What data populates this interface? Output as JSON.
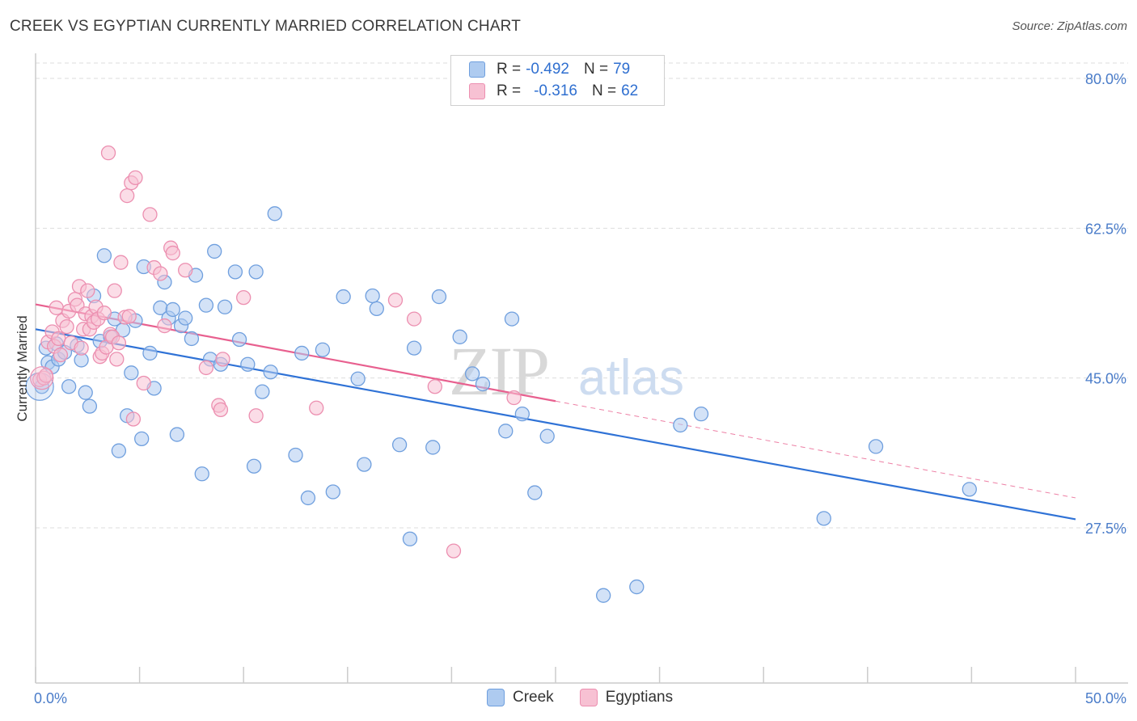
{
  "header": {
    "title": "CREEK VS EGYPTIAN CURRENTLY MARRIED CORRELATION CHART",
    "source": "Source: ZipAtlas.com"
  },
  "legend": {
    "rows": [
      {
        "r_label": "R =",
        "r_value": "-0.492",
        "n_label": "N =",
        "n_value": "79"
      },
      {
        "r_label": "R =",
        "r_value": "-0.316",
        "n_label": "N =",
        "n_value": "62"
      }
    ]
  },
  "bottom_legend": {
    "items": [
      {
        "label": "Creek"
      },
      {
        "label": "Egyptians"
      }
    ]
  },
  "watermark": {
    "zip": "ZIP",
    "atlas": "atlas"
  },
  "colors": {
    "creek_fill": "#aecbf0",
    "creek_stroke": "#6f9fde",
    "creek_line": "#2f72d6",
    "egypt_fill": "#f7c1d3",
    "egypt_stroke": "#ec8fb0",
    "egypt_line": "#e8608f",
    "grid": "#dddddd",
    "tick_text": "#4a7cc9"
  },
  "chart_data": {
    "type": "scatter",
    "title": "CREEK VS EGYPTIAN CURRENTLY MARRIED CORRELATION CHART",
    "xlabel": "",
    "ylabel": "Currently Married",
    "xlim": [
      0,
      50
    ],
    "ylim": [
      10,
      85
    ],
    "x_tick_labels": [
      "0.0%",
      "50.0%"
    ],
    "y_ticks": [
      27.5,
      45.0,
      62.5,
      80.0
    ],
    "y_tick_labels": [
      "27.5%",
      "45.0%",
      "62.5%",
      "80.0%"
    ],
    "grid": true,
    "legend_position": "top-center",
    "series": [
      {
        "name": "Creek",
        "r": -0.492,
        "n": 79,
        "trend": {
          "x0": 0,
          "y0": 50.7,
          "x1": 50,
          "y1": 28.5
        },
        "points": [
          [
            0.3,
            44.0
          ],
          [
            0.5,
            48.5
          ],
          [
            0.6,
            46.8
          ],
          [
            0.8,
            46.3
          ],
          [
            1.0,
            49.0
          ],
          [
            1.1,
            47.2
          ],
          [
            1.4,
            48.0
          ],
          [
            1.6,
            44.0
          ],
          [
            2.0,
            48.8
          ],
          [
            2.2,
            47.1
          ],
          [
            2.4,
            43.3
          ],
          [
            2.6,
            41.7
          ],
          [
            2.8,
            54.6
          ],
          [
            3.1,
            49.3
          ],
          [
            3.3,
            59.3
          ],
          [
            3.6,
            49.8
          ],
          [
            3.8,
            51.9
          ],
          [
            4.0,
            36.5
          ],
          [
            4.2,
            50.6
          ],
          [
            4.4,
            40.6
          ],
          [
            4.6,
            45.6
          ],
          [
            4.8,
            51.7
          ],
          [
            5.1,
            37.9
          ],
          [
            5.2,
            58.0
          ],
          [
            5.5,
            47.9
          ],
          [
            5.7,
            43.8
          ],
          [
            6.0,
            53.2
          ],
          [
            6.2,
            56.2
          ],
          [
            6.4,
            52.0
          ],
          [
            6.6,
            53.0
          ],
          [
            6.8,
            38.4
          ],
          [
            7.0,
            51.1
          ],
          [
            7.2,
            52.0
          ],
          [
            7.5,
            49.6
          ],
          [
            7.7,
            57.0
          ],
          [
            8.0,
            33.8
          ],
          [
            8.2,
            53.5
          ],
          [
            8.4,
            47.2
          ],
          [
            8.6,
            59.8
          ],
          [
            8.9,
            46.6
          ],
          [
            9.1,
            53.3
          ],
          [
            9.6,
            57.4
          ],
          [
            9.8,
            49.5
          ],
          [
            10.2,
            46.6
          ],
          [
            10.5,
            34.7
          ],
          [
            10.6,
            57.4
          ],
          [
            10.9,
            43.4
          ],
          [
            11.3,
            45.7
          ],
          [
            11.5,
            64.2
          ],
          [
            12.5,
            36.0
          ],
          [
            12.8,
            47.9
          ],
          [
            13.1,
            31.0
          ],
          [
            13.8,
            48.3
          ],
          [
            14.3,
            31.7
          ],
          [
            14.8,
            54.5
          ],
          [
            15.5,
            44.9
          ],
          [
            15.8,
            34.9
          ],
          [
            16.2,
            54.6
          ],
          [
            16.4,
            53.1
          ],
          [
            17.5,
            37.2
          ],
          [
            18.0,
            26.2
          ],
          [
            18.2,
            48.5
          ],
          [
            19.1,
            36.9
          ],
          [
            19.4,
            54.5
          ],
          [
            20.4,
            49.8
          ],
          [
            21.0,
            45.5
          ],
          [
            21.5,
            44.3
          ],
          [
            22.6,
            38.8
          ],
          [
            22.9,
            51.9
          ],
          [
            23.4,
            40.8
          ],
          [
            24.0,
            31.6
          ],
          [
            24.6,
            38.2
          ],
          [
            27.3,
            19.6
          ],
          [
            28.9,
            20.6
          ],
          [
            31.0,
            39.5
          ],
          [
            32.0,
            40.8
          ],
          [
            37.9,
            28.6
          ],
          [
            40.4,
            37.0
          ],
          [
            44.9,
            32.0
          ]
        ]
      },
      {
        "name": "Egyptians",
        "r": -0.316,
        "n": 62,
        "trend": {
          "x0": 0,
          "y0": 53.6,
          "x1": 50,
          "y1": 31.0
        },
        "trend_solid_until": 25,
        "points": [
          [
            0.2,
            44.8
          ],
          [
            0.4,
            45.0
          ],
          [
            0.6,
            49.2
          ],
          [
            0.8,
            50.4
          ],
          [
            0.9,
            48.7
          ],
          [
            1.0,
            53.2
          ],
          [
            1.1,
            49.6
          ],
          [
            1.2,
            47.7
          ],
          [
            1.3,
            51.7
          ],
          [
            1.5,
            51.0
          ],
          [
            1.6,
            52.8
          ],
          [
            1.7,
            49.1
          ],
          [
            1.9,
            54.2
          ],
          [
            2.0,
            53.5
          ],
          [
            2.1,
            55.7
          ],
          [
            2.2,
            48.5
          ],
          [
            2.3,
            50.7
          ],
          [
            2.4,
            52.5
          ],
          [
            2.5,
            55.2
          ],
          [
            2.6,
            50.7
          ],
          [
            2.7,
            52.2
          ],
          [
            2.8,
            51.5
          ],
          [
            2.9,
            53.3
          ],
          [
            3.0,
            51.9
          ],
          [
            3.1,
            47.5
          ],
          [
            3.2,
            47.9
          ],
          [
            3.3,
            52.6
          ],
          [
            3.4,
            48.6
          ],
          [
            3.5,
            71.3
          ],
          [
            3.6,
            50.1
          ],
          [
            3.7,
            49.8
          ],
          [
            3.8,
            55.2
          ],
          [
            3.9,
            47.2
          ],
          [
            4.0,
            49.1
          ],
          [
            4.1,
            58.5
          ],
          [
            4.3,
            52.1
          ],
          [
            4.4,
            66.3
          ],
          [
            4.5,
            52.2
          ],
          [
            4.6,
            67.8
          ],
          [
            4.7,
            40.2
          ],
          [
            4.8,
            68.4
          ],
          [
            5.2,
            44.4
          ],
          [
            5.5,
            64.1
          ],
          [
            5.7,
            57.9
          ],
          [
            6.0,
            57.2
          ],
          [
            6.2,
            51.1
          ],
          [
            6.5,
            60.2
          ],
          [
            6.6,
            59.6
          ],
          [
            7.2,
            57.6
          ],
          [
            8.2,
            46.2
          ],
          [
            8.8,
            41.8
          ],
          [
            8.9,
            41.3
          ],
          [
            9.0,
            47.2
          ],
          [
            10.0,
            54.4
          ],
          [
            10.6,
            40.6
          ],
          [
            13.5,
            41.5
          ],
          [
            17.3,
            54.1
          ],
          [
            18.2,
            51.9
          ],
          [
            19.2,
            44.0
          ],
          [
            20.1,
            24.8
          ],
          [
            23.0,
            42.7
          ],
          [
            0.5,
            45.3
          ]
        ]
      }
    ]
  }
}
